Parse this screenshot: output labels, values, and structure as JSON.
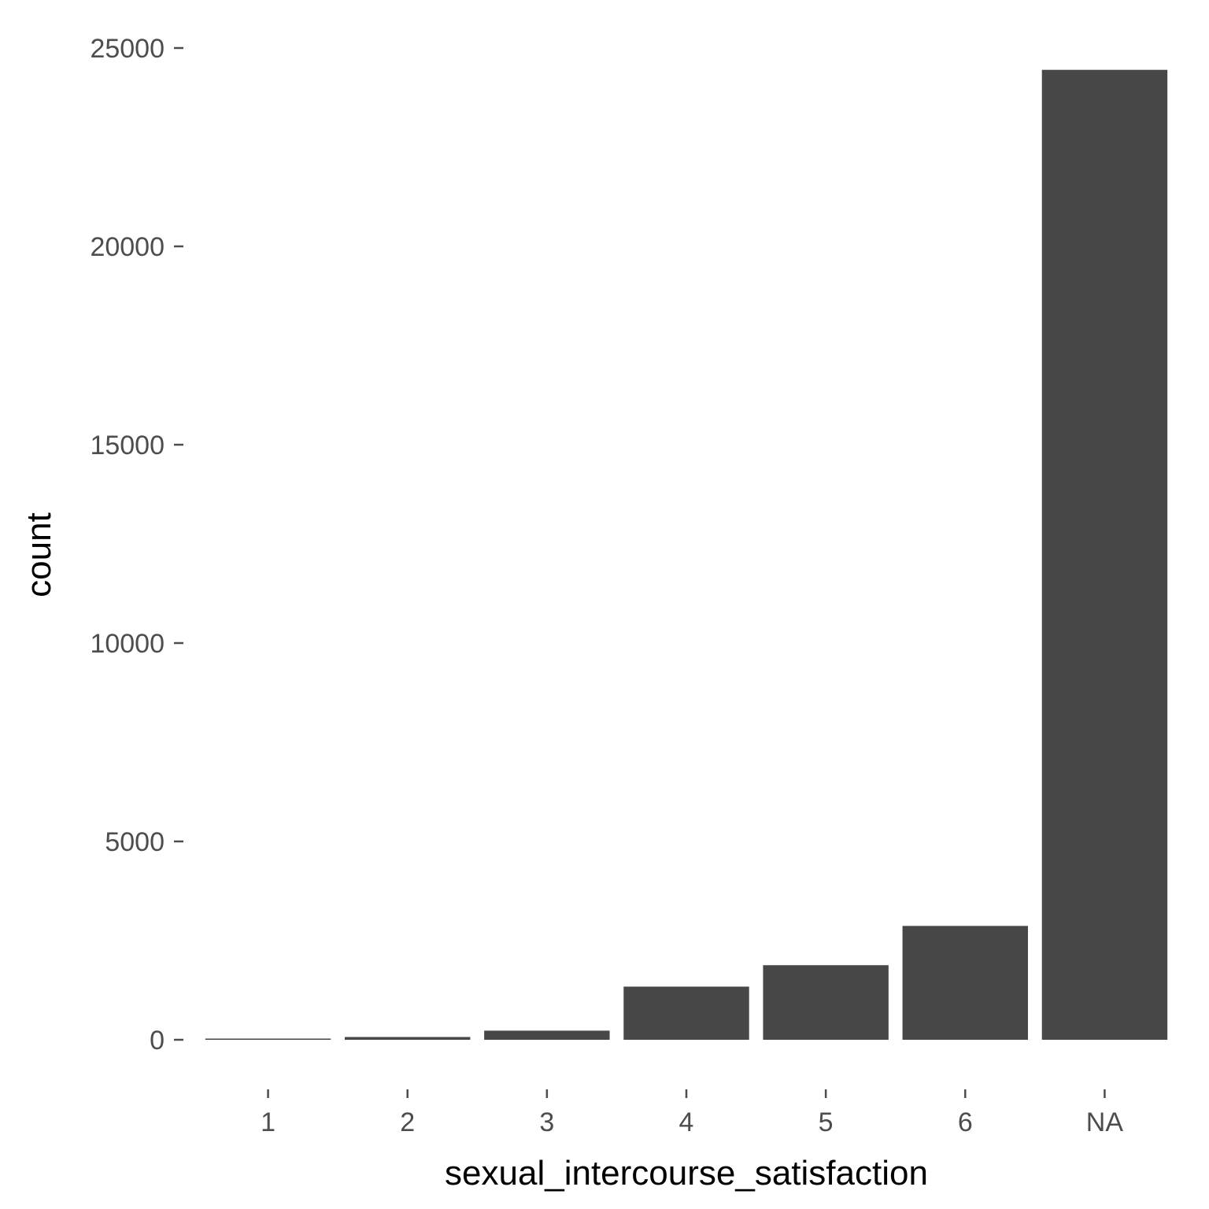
{
  "chart_data": {
    "type": "bar",
    "categories": [
      "1",
      "2",
      "3",
      "4",
      "5",
      "6",
      "NA"
    ],
    "values": [
      30,
      70,
      230,
      1340,
      1880,
      2870,
      24450
    ],
    "xlabel": "sexual_intercourse_satisfaction",
    "ylabel": "count",
    "ylim": [
      0,
      25000
    ],
    "yticks": [
      0,
      5000,
      10000,
      15000,
      20000,
      25000
    ],
    "bar_color": "#474747",
    "grid": false,
    "legend": "none"
  }
}
